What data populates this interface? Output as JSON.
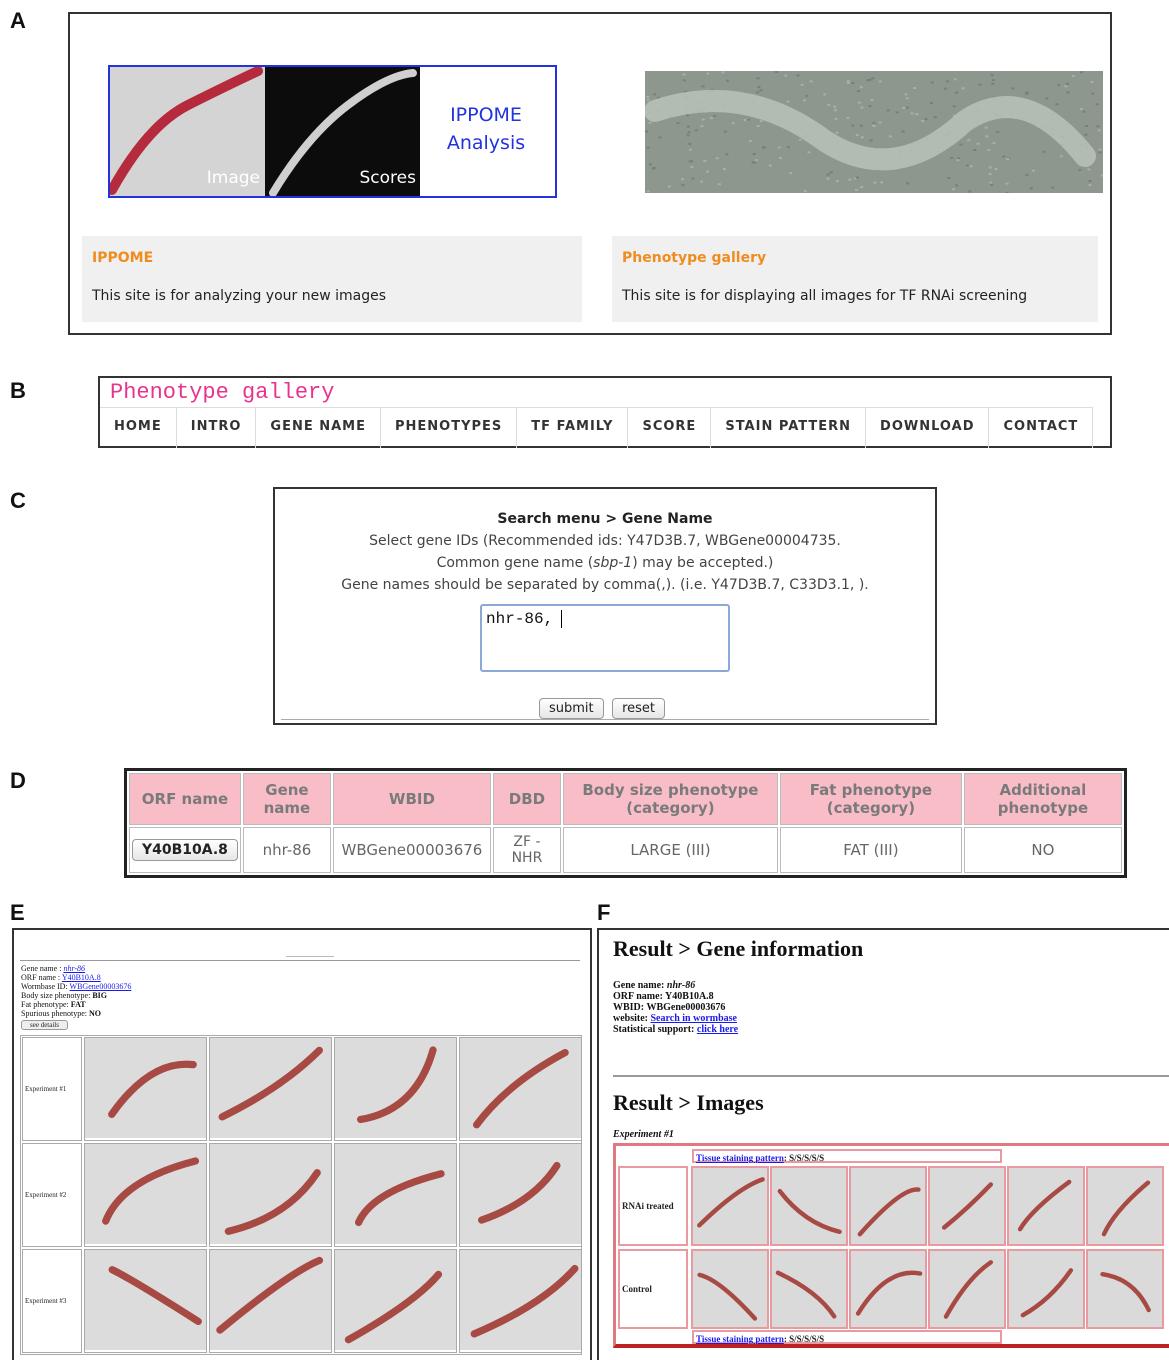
{
  "panel_labels": [
    "A",
    "B",
    "C",
    "D",
    "E",
    "F"
  ],
  "panel_a": {
    "cards": [
      {
        "title": "IPPOME",
        "description": "This site is for analyzing your new images",
        "image_captions": [
          "Image",
          "Scores"
        ],
        "analysis_label": "IPPOME Analysis"
      },
      {
        "title": "Phenotype gallery",
        "description": "This site is for displaying all images for TF RNAi screening"
      }
    ]
  },
  "panel_b": {
    "site_title": "Phenotype gallery",
    "nav": [
      "HOME",
      "INTRO",
      "GENE NAME",
      "PHENOTYPES",
      "TF FAMILY",
      "SCORE",
      "STAIN PATTERN",
      "DOWNLOAD",
      "CONTACT"
    ]
  },
  "panel_c": {
    "heading": "Search menu > Gene Name",
    "line1": "Select gene IDs (Recommended ids: Y47D3B.7, WBGene00004735.",
    "line2_before": "Common gene name (",
    "line2_gene": "sbp-1",
    "line2_after": ") may be accepted.)",
    "line3": "Gene names should be separated by comma(,). (i.e. Y47D3B.7, C33D3.1, ).",
    "input": "nhr-86,",
    "buttons": [
      "submit",
      "reset"
    ]
  },
  "panel_d": {
    "headers": [
      "ORF name",
      "Gene name",
      "WBID",
      "DBD",
      "Body size phenotype (category)",
      "Fat phenotype (category)",
      "Additional phenotype"
    ],
    "row": [
      "Y40B10A.8",
      "nhr-86",
      "WBGene00003676",
      "ZF - NHR",
      "LARGE (III)",
      "FAT (III)",
      "NO"
    ]
  },
  "panel_e": {
    "info": [
      [
        "Gene name :",
        "nhr-86"
      ],
      [
        "ORF name :",
        "Y40B10A.8"
      ],
      [
        "Wormbase ID:",
        "WBGene00003676"
      ],
      [
        "Body size phenotype:",
        "BIG"
      ],
      [
        "Fat phenotype:",
        "FAT"
      ],
      [
        "Spurious phenotype:",
        "NO"
      ]
    ],
    "button": "see details",
    "experiments": [
      "Experiment #1",
      "Experiment #2",
      "Experiment #3"
    ]
  },
  "panel_f": {
    "gene_heading": "Result > Gene information",
    "info": [
      [
        "Gene name:",
        "nhr-86"
      ],
      [
        "ORF name:",
        "Y40B10A.8"
      ],
      [
        "WBID:",
        "WBGene00003676"
      ],
      [
        "website:",
        "Search in wormbase"
      ],
      [
        "Statistical support:",
        "click here"
      ]
    ],
    "images_heading": "Result > Images",
    "experiment": "Experiment #1",
    "rows": [
      "RNAi treated",
      "Control"
    ],
    "staining_link": "Tissue staining pattern",
    "staining_value": ": S/S/S/S/S"
  }
}
